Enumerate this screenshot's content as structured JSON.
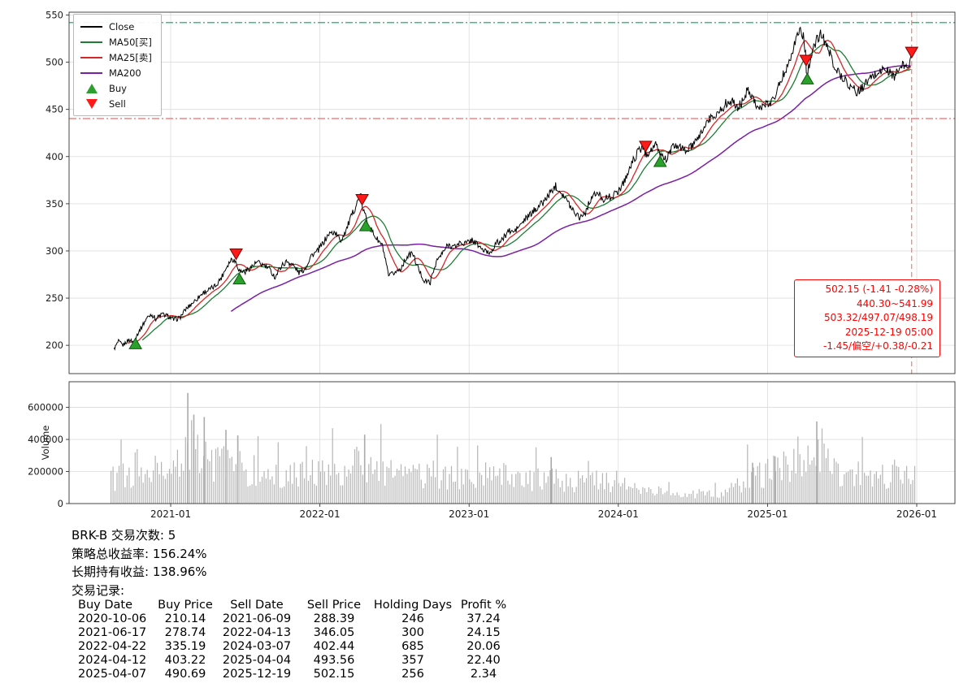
{
  "chart_data": {
    "type": "line",
    "symbol": "BRK-B",
    "colors": {
      "close": "#000000",
      "ma50": "#1e7d32",
      "ma25": "#d62728",
      "ma200": "#7b1fa2",
      "buy": "#2ca02c",
      "sell": "#ff1a1a",
      "hline_high": "#00a651",
      "hline_low": "#ff5555",
      "vline": "#ff6b6b",
      "volume_bar": "#b5b5b5",
      "grid": "#dcdcdc"
    },
    "price_axis": {
      "ticks": [
        200,
        250,
        300,
        350,
        400,
        450,
        500,
        550
      ],
      "range": [
        170,
        553
      ]
    },
    "time_axis": {
      "years": [
        2021,
        2022,
        2023,
        2024,
        2025,
        2026
      ],
      "labels": [
        "2021-01",
        "2022-01",
        "2023-01",
        "2024-01",
        "2025-01",
        "2026-01"
      ]
    },
    "legend": [
      {
        "label": "Close",
        "type": "line",
        "color": "#000000",
        "icon": "close-line-swatch"
      },
      {
        "label": "MA50[买]",
        "type": "line",
        "color": "#1e7d32",
        "icon": "ma50-line-swatch"
      },
      {
        "label": "MA25[卖]",
        "type": "line",
        "color": "#d62728",
        "icon": "ma25-line-swatch"
      },
      {
        "label": "MA200",
        "type": "line",
        "color": "#7b1fa2",
        "icon": "ma200-line-swatch"
      },
      {
        "label": "Buy",
        "type": "tri-up",
        "color": "#2ca02c",
        "icon": "buy-marker-icon"
      },
      {
        "label": "Sell",
        "type": "tri-down",
        "color": "#ff1a1a",
        "icon": "sell-marker-icon"
      }
    ],
    "hlines": [
      {
        "name": "high-reference-line",
        "value": 541.99,
        "color": "#00a651"
      },
      {
        "name": "low-reference-line",
        "value": 440.3,
        "color": "#ff5555"
      }
    ],
    "vline": {
      "date": "2025-12-19"
    },
    "ma_windows": {
      "ma25": 20,
      "ma50": 39,
      "ma200": 158
    },
    "close_anchors": [
      [
        2020.62,
        196
      ],
      [
        2020.65,
        204
      ],
      [
        2020.68,
        200
      ],
      [
        2020.72,
        206
      ],
      [
        2020.76,
        203
      ],
      [
        2020.77,
        210
      ],
      [
        2020.8,
        218
      ],
      [
        2020.84,
        229
      ],
      [
        2020.87,
        233
      ],
      [
        2020.9,
        228
      ],
      [
        2020.94,
        233
      ],
      [
        2020.98,
        231
      ],
      [
        2021.02,
        227
      ],
      [
        2021.06,
        229
      ],
      [
        2021.1,
        238
      ],
      [
        2021.14,
        244
      ],
      [
        2021.18,
        250
      ],
      [
        2021.22,
        256
      ],
      [
        2021.26,
        259
      ],
      [
        2021.3,
        263
      ],
      [
        2021.34,
        272
      ],
      [
        2021.38,
        285
      ],
      [
        2021.41,
        292
      ],
      [
        2021.44,
        288
      ],
      [
        2021.46,
        279
      ],
      [
        2021.5,
        278
      ],
      [
        2021.54,
        283
      ],
      [
        2021.58,
        288
      ],
      [
        2021.62,
        285
      ],
      [
        2021.66,
        281
      ],
      [
        2021.7,
        272
      ],
      [
        2021.74,
        284
      ],
      [
        2021.78,
        289
      ],
      [
        2021.82,
        285
      ],
      [
        2021.86,
        277
      ],
      [
        2021.9,
        281
      ],
      [
        2021.94,
        295
      ],
      [
        2021.98,
        299
      ],
      [
        2022.02,
        308
      ],
      [
        2022.06,
        318
      ],
      [
        2022.1,
        320
      ],
      [
        2022.14,
        311
      ],
      [
        2022.18,
        324
      ],
      [
        2022.22,
        340
      ],
      [
        2022.26,
        355
      ],
      [
        2022.275,
        359
      ],
      [
        2022.285,
        346
      ],
      [
        2022.31,
        335
      ],
      [
        2022.34,
        323
      ],
      [
        2022.38,
        313
      ],
      [
        2022.42,
        305
      ],
      [
        2022.46,
        273
      ],
      [
        2022.5,
        277
      ],
      [
        2022.54,
        281
      ],
      [
        2022.58,
        293
      ],
      [
        2022.62,
        298
      ],
      [
        2022.66,
        281
      ],
      [
        2022.7,
        268
      ],
      [
        2022.74,
        267
      ],
      [
        2022.78,
        289
      ],
      [
        2022.82,
        297
      ],
      [
        2022.86,
        307
      ],
      [
        2022.9,
        304
      ],
      [
        2022.94,
        309
      ],
      [
        2022.98,
        308
      ],
      [
        2023.02,
        312
      ],
      [
        2023.06,
        306
      ],
      [
        2023.1,
        300
      ],
      [
        2023.14,
        298
      ],
      [
        2023.18,
        308
      ],
      [
        2023.22,
        311
      ],
      [
        2023.26,
        321
      ],
      [
        2023.3,
        320
      ],
      [
        2023.34,
        327
      ],
      [
        2023.38,
        334
      ],
      [
        2023.42,
        340
      ],
      [
        2023.46,
        347
      ],
      [
        2023.5,
        352
      ],
      [
        2023.54,
        361
      ],
      [
        2023.58,
        369
      ],
      [
        2023.62,
        362
      ],
      [
        2023.66,
        352
      ],
      [
        2023.7,
        343
      ],
      [
        2023.74,
        336
      ],
      [
        2023.78,
        341
      ],
      [
        2023.82,
        357
      ],
      [
        2023.86,
        361
      ],
      [
        2023.9,
        355
      ],
      [
        2023.94,
        357
      ],
      [
        2023.98,
        360
      ],
      [
        2024.02,
        368
      ],
      [
        2024.06,
        381
      ],
      [
        2024.1,
        396
      ],
      [
        2024.14,
        407
      ],
      [
        2024.17,
        411
      ],
      [
        2024.18,
        402
      ],
      [
        2024.22,
        407
      ],
      [
        2024.25,
        412
      ],
      [
        2024.28,
        403
      ],
      [
        2024.32,
        397
      ],
      [
        2024.36,
        409
      ],
      [
        2024.4,
        412
      ],
      [
        2024.44,
        406
      ],
      [
        2024.48,
        409
      ],
      [
        2024.52,
        415
      ],
      [
        2024.56,
        427
      ],
      [
        2024.6,
        438
      ],
      [
        2024.64,
        443
      ],
      [
        2024.68,
        448
      ],
      [
        2024.72,
        456
      ],
      [
        2024.76,
        459
      ],
      [
        2024.8,
        451
      ],
      [
        2024.84,
        461
      ],
      [
        2024.87,
        472
      ],
      [
        2024.9,
        464
      ],
      [
        2024.93,
        453
      ],
      [
        2024.96,
        451
      ],
      [
        2025.0,
        456
      ],
      [
        2025.04,
        461
      ],
      [
        2025.08,
        477
      ],
      [
        2025.12,
        492
      ],
      [
        2025.16,
        509
      ],
      [
        2025.19,
        524
      ],
      [
        2025.22,
        536
      ],
      [
        2025.24,
        527
      ],
      [
        2025.255,
        507
      ],
      [
        2025.26,
        494
      ],
      [
        2025.27,
        491
      ],
      [
        2025.3,
        509
      ],
      [
        2025.33,
        524
      ],
      [
        2025.36,
        530
      ],
      [
        2025.39,
        520
      ],
      [
        2025.42,
        508
      ],
      [
        2025.45,
        496
      ],
      [
        2025.48,
        488
      ],
      [
        2025.52,
        481
      ],
      [
        2025.56,
        474
      ],
      [
        2025.6,
        468
      ],
      [
        2025.63,
        472
      ],
      [
        2025.66,
        478
      ],
      [
        2025.7,
        484
      ],
      [
        2025.74,
        489
      ],
      [
        2025.78,
        493
      ],
      [
        2025.82,
        489
      ],
      [
        2025.85,
        485
      ],
      [
        2025.88,
        492
      ],
      [
        2025.91,
        497
      ],
      [
        2025.93,
        494
      ],
      [
        2025.96,
        502
      ]
    ],
    "volume": {
      "ylabel": "Volume",
      "ticks": [
        0,
        200000,
        400000,
        600000
      ],
      "monthly": [
        [
          2020.625,
          150000
        ],
        [
          2020.708,
          185000
        ],
        [
          2020.792,
          165000
        ],
        [
          2020.875,
          210000
        ],
        [
          2020.958,
          175000
        ],
        [
          2021.042,
          215000
        ],
        [
          2021.125,
          330000
        ],
        [
          2021.208,
          305000
        ],
        [
          2021.292,
          240000
        ],
        [
          2021.375,
          275000
        ],
        [
          2021.458,
          215000
        ],
        [
          2021.542,
          185000
        ],
        [
          2021.625,
          165000
        ],
        [
          2021.708,
          185000
        ],
        [
          2021.792,
          165000
        ],
        [
          2021.875,
          175000
        ],
        [
          2021.958,
          185000
        ],
        [
          2022.042,
          210000
        ],
        [
          2022.125,
          205000
        ],
        [
          2022.208,
          225000
        ],
        [
          2022.292,
          235000
        ],
        [
          2022.375,
          220000
        ],
        [
          2022.458,
          205000
        ],
        [
          2022.542,
          175000
        ],
        [
          2022.625,
          165000
        ],
        [
          2022.708,
          185000
        ],
        [
          2022.792,
          175000
        ],
        [
          2022.875,
          160000
        ],
        [
          2022.958,
          150000
        ],
        [
          2023.042,
          165000
        ],
        [
          2023.125,
          170000
        ],
        [
          2023.208,
          195000
        ],
        [
          2023.292,
          160000
        ],
        [
          2023.375,
          150000
        ],
        [
          2023.458,
          145000
        ],
        [
          2023.542,
          160000
        ],
        [
          2023.625,
          150000
        ],
        [
          2023.708,
          135000
        ],
        [
          2023.792,
          145000
        ],
        [
          2023.875,
          150000
        ],
        [
          2023.958,
          140000
        ],
        [
          2024.042,
          140000
        ],
        [
          2024.125,
          90000
        ],
        [
          2024.208,
          85000
        ],
        [
          2024.292,
          75000
        ],
        [
          2024.375,
          60000
        ],
        [
          2024.458,
          55000
        ],
        [
          2024.542,
          60000
        ],
        [
          2024.625,
          65000
        ],
        [
          2024.708,
          70000
        ],
        [
          2024.792,
          110000
        ],
        [
          2024.875,
          170000
        ],
        [
          2024.958,
          180000
        ],
        [
          2025.042,
          195000
        ],
        [
          2025.125,
          215000
        ],
        [
          2025.208,
          260000
        ],
        [
          2025.292,
          290000
        ],
        [
          2025.375,
          260000
        ],
        [
          2025.458,
          215000
        ],
        [
          2025.542,
          190000
        ],
        [
          2025.625,
          175000
        ],
        [
          2025.708,
          165000
        ],
        [
          2025.792,
          175000
        ],
        [
          2025.875,
          185000
        ],
        [
          2025.958,
          160000
        ]
      ],
      "spikes": [
        [
          2021.115,
          690000
        ],
        [
          2021.155,
          555000
        ],
        [
          2021.225,
          540000
        ],
        [
          2021.37,
          460000
        ],
        [
          2021.45,
          425000
        ],
        [
          2022.3,
          430000
        ],
        [
          2023.55,
          290000
        ],
        [
          2024.9,
          255000
        ],
        [
          2025.05,
          295000
        ],
        [
          2025.33,
          512000
        ]
      ]
    },
    "annotation": {
      "lines": [
        "502.15 (-1.41 -0.28%)",
        "440.30~541.99",
        "503.32/497.07/498.19",
        "2025-12-19 05:00",
        "-1.45/偏空/+0.38/-0.21"
      ]
    }
  },
  "stats": {
    "lines": [
      "BRK-B 交易次数: 5",
      "策略总收益率: 156.24%",
      "长期持有收益: 138.96%",
      "交易记录:"
    ]
  },
  "trades": {
    "headers": [
      "Buy Date",
      "Buy Price",
      "Sell Date",
      "Sell Price",
      "Holding Days",
      "Profit %"
    ],
    "rows": [
      [
        "2020-10-06",
        "210.14",
        "2021-06-09",
        "288.39",
        "246",
        "37.24"
      ],
      [
        "2021-06-17",
        "278.74",
        "2022-04-13",
        "346.05",
        "300",
        "24.15"
      ],
      [
        "2022-04-22",
        "335.19",
        "2024-03-07",
        "402.44",
        "685",
        "20.06"
      ],
      [
        "2024-04-12",
        "403.22",
        "2025-04-04",
        "493.56",
        "357",
        "22.40"
      ],
      [
        "2025-04-07",
        "490.69",
        "2025-12-19",
        "502.15",
        "256",
        "2.34"
      ]
    ]
  }
}
